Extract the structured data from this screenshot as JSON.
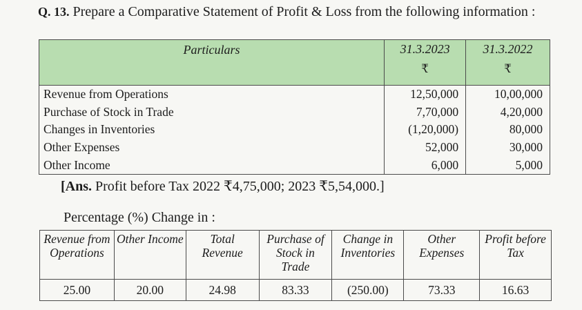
{
  "question": {
    "number": "Q. 13.",
    "text": "Prepare a Comparative Statement of Profit & Loss from the following information :"
  },
  "main_table": {
    "headers": {
      "particulars": "Particulars",
      "year1": "31.3.2023",
      "year2": "31.3.2022",
      "currency1": "₹",
      "currency2": "₹"
    },
    "rows": [
      {
        "label": "Revenue from Operations",
        "y2023": "12,50,000",
        "y2022": "10,00,000"
      },
      {
        "label": "Purchase of Stock in Trade",
        "y2023": "7,70,000",
        "y2022": "4,20,000"
      },
      {
        "label": "Changes in Inventories",
        "y2023": "(1,20,000)",
        "y2022": "80,000"
      },
      {
        "label": "Other Expenses",
        "y2023": "52,000",
        "y2022": "30,000"
      },
      {
        "label": "Other Income",
        "y2023": "6,000",
        "y2022": "5,000"
      }
    ]
  },
  "answer": {
    "prefix": "[Ans.",
    "text": "Profit before Tax 2022 ₹4,75,000; 2023 ₹5,54,000.]"
  },
  "percentage_label": "Percentage (%) Change in :",
  "pct_table": {
    "headers": [
      "Revenue from Operations",
      "Other Income",
      "Total Revenue",
      "Purchase of Stock in Trade",
      "Change in Inventories",
      "Other Expenses",
      "Profit before Tax"
    ],
    "values": [
      "25.00",
      "20.00",
      "24.98",
      "83.33",
      "(250.00)",
      "73.33",
      "16.63"
    ]
  },
  "colors": {
    "header_bg": "#b8ddb0",
    "page_bg": "#f7f7f4"
  }
}
